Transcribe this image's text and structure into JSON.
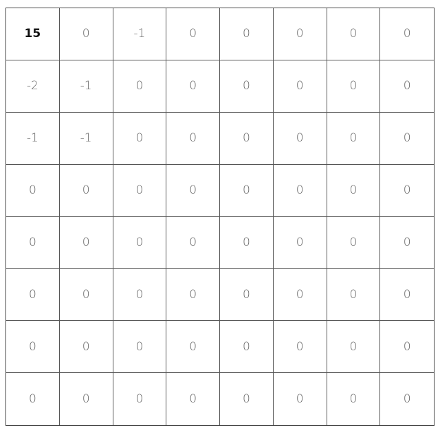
{
  "grid": {
    "rows": [
      [
        "15",
        "0",
        "-1",
        "0",
        "0",
        "0",
        "0",
        "0"
      ],
      [
        "-2",
        "-1",
        "0",
        "0",
        "0",
        "0",
        "0",
        "0"
      ],
      [
        "-1",
        "-1",
        "0",
        "0",
        "0",
        "0",
        "0",
        "0"
      ],
      [
        "0",
        "0",
        "0",
        "0",
        "0",
        "0",
        "0",
        "0"
      ],
      [
        "0",
        "0",
        "0",
        "0",
        "0",
        "0",
        "0",
        "0"
      ],
      [
        "0",
        "0",
        "0",
        "0",
        "0",
        "0",
        "0",
        "0"
      ],
      [
        "0",
        "0",
        "0",
        "0",
        "0",
        "0",
        "0",
        "0"
      ],
      [
        "0",
        "0",
        "0",
        "0",
        "0",
        "0",
        "0",
        "0"
      ]
    ]
  }
}
